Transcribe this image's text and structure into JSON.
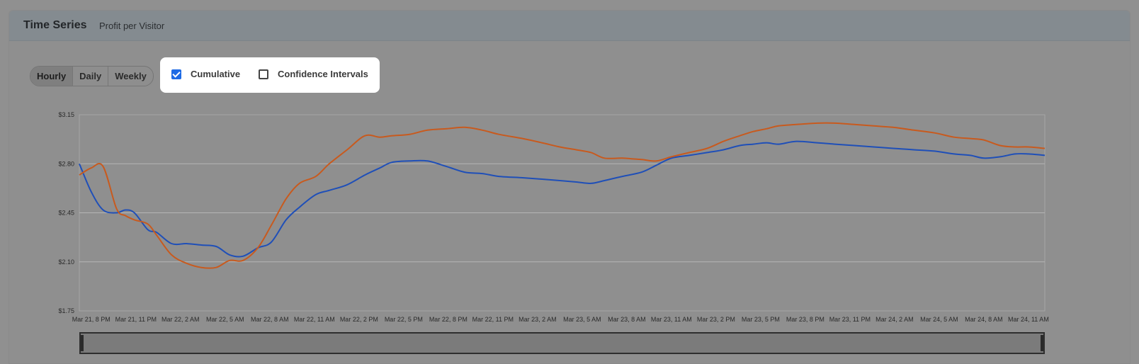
{
  "header": {
    "title": "Time Series",
    "subtitle": "Profit per Visitor"
  },
  "granularity": {
    "options": [
      "Hourly",
      "Daily",
      "Weekly"
    ],
    "selected": "Hourly"
  },
  "toggles": {
    "cumulative": {
      "label": "Cumulative",
      "checked": true
    },
    "confidence_intervals": {
      "label": "Confidence Intervals",
      "checked": false
    }
  },
  "colors": {
    "series_a": "#1f4fb8",
    "series_b": "#c85a1e",
    "grid": "#b5b5b5"
  },
  "chart_data": {
    "type": "line",
    "title": "",
    "xlabel": "",
    "ylabel": "",
    "ylim": [
      1.75,
      3.15
    ],
    "yticks": [
      "$3.15",
      "$2.80",
      "$2.45",
      "$2.10",
      "$1.75"
    ],
    "ytick_values": [
      3.15,
      2.8,
      2.45,
      2.1,
      1.75
    ],
    "xticks": [
      "Mar 21, 8 PM",
      "Mar 21, 11 PM",
      "Mar 22, 2 AM",
      "Mar 22, 5 AM",
      "Mar 22, 8 AM",
      "Mar 22, 11 AM",
      "Mar 22, 2 PM",
      "Mar 22, 5 PM",
      "Mar 22, 8 PM",
      "Mar 22, 11 PM",
      "Mar 23, 2 AM",
      "Mar 23, 5 AM",
      "Mar 23, 8 AM",
      "Mar 23, 11 AM",
      "Mar 23, 2 PM",
      "Mar 23, 5 PM",
      "Mar 23, 8 PM",
      "Mar 23, 11 PM",
      "Mar 24, 2 AM",
      "Mar 24, 5 AM",
      "Mar 24, 8 AM",
      "Mar 24, 11 AM"
    ],
    "x_hours": [
      0,
      3,
      6,
      9,
      12,
      15,
      18,
      21,
      24,
      27,
      30,
      33,
      36,
      39,
      42,
      45,
      48,
      51,
      54,
      57,
      60,
      63
    ],
    "xlim_hours": [
      -0.8,
      64.1
    ],
    "grid": true,
    "legend": "none",
    "series": [
      {
        "color": "#1f4fb8",
        "x": [
          -0.8,
          0,
          0.8,
          1.7,
          2.3,
          2.9,
          3.8,
          4.4,
          5.4,
          6.4,
          7.4,
          8.4,
          9.3,
          10.2,
          11.2,
          12.1,
          13.1,
          14.0,
          15.1,
          16.0,
          17.2,
          18.4,
          19.4,
          20.2,
          21.4,
          22.6,
          23.9,
          25.1,
          26.3,
          27.4,
          29.0,
          30.3,
          31.5,
          32.6,
          33.6,
          34.5,
          35.7,
          37.0,
          38.0,
          39.0,
          40.2,
          41.4,
          42.5,
          43.6,
          44.5,
          45.4,
          46.2,
          47.4,
          48.8,
          50.0,
          51.3,
          52.6,
          53.9,
          55.3,
          56.7,
          58.0,
          59.1,
          60.0,
          61.1,
          62.1,
          63.0,
          64.1
        ],
        "y": [
          2.8,
          2.6,
          2.47,
          2.45,
          2.47,
          2.45,
          2.33,
          2.31,
          2.23,
          2.23,
          2.22,
          2.21,
          2.15,
          2.14,
          2.2,
          2.24,
          2.4,
          2.49,
          2.58,
          2.61,
          2.65,
          2.72,
          2.77,
          2.81,
          2.82,
          2.82,
          2.78,
          2.74,
          2.73,
          2.71,
          2.7,
          2.69,
          2.68,
          2.67,
          2.66,
          2.68,
          2.71,
          2.74,
          2.79,
          2.84,
          2.86,
          2.88,
          2.9,
          2.93,
          2.94,
          2.95,
          2.94,
          2.96,
          2.95,
          2.94,
          2.93,
          2.92,
          2.91,
          2.9,
          2.89,
          2.87,
          2.86,
          2.84,
          2.85,
          2.87,
          2.87,
          2.86
        ]
      },
      {
        "color": "#c85a1e",
        "x": [
          -0.8,
          0,
          0.8,
          1.7,
          2.3,
          2.9,
          3.8,
          4.4,
          5.4,
          6.4,
          7.4,
          8.4,
          9.3,
          10.2,
          11.2,
          12.1,
          13.1,
          14.0,
          15.1,
          16.0,
          17.2,
          18.4,
          19.4,
          20.2,
          21.4,
          22.6,
          23.9,
          25.1,
          26.3,
          27.4,
          29.0,
          30.3,
          31.5,
          32.6,
          33.6,
          34.5,
          35.7,
          37.0,
          38.0,
          39.0,
          40.2,
          41.4,
          42.5,
          43.6,
          44.5,
          45.4,
          46.2,
          47.4,
          48.8,
          50.0,
          51.3,
          52.6,
          53.9,
          55.3,
          56.7,
          58.0,
          59.1,
          60.0,
          61.1,
          62.1,
          63.0,
          64.1
        ],
        "y": [
          2.72,
          2.77,
          2.78,
          2.48,
          2.43,
          2.4,
          2.37,
          2.29,
          2.15,
          2.09,
          2.06,
          2.06,
          2.11,
          2.11,
          2.2,
          2.36,
          2.55,
          2.66,
          2.71,
          2.8,
          2.9,
          3.0,
          2.99,
          3.0,
          3.01,
          3.04,
          3.05,
          3.06,
          3.04,
          3.01,
          2.98,
          2.95,
          2.92,
          2.9,
          2.88,
          2.84,
          2.84,
          2.83,
          2.82,
          2.85,
          2.88,
          2.91,
          2.96,
          3.0,
          3.03,
          3.05,
          3.07,
          3.08,
          3.09,
          3.09,
          3.08,
          3.07,
          3.06,
          3.04,
          3.02,
          2.99,
          2.98,
          2.97,
          2.93,
          2.92,
          2.92,
          2.91
        ]
      }
    ]
  }
}
